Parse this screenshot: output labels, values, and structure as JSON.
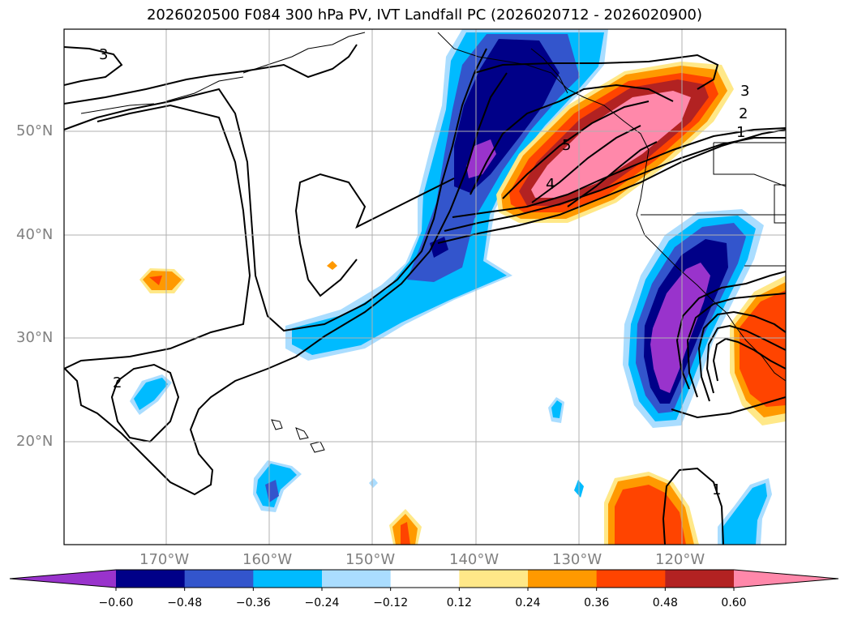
{
  "title": "2026020500 F084 300 hPa PV, IVT Landfall PC (2026020712 - 2026020900)",
  "lat_labels": [
    "50°N",
    "40°N",
    "30°N",
    "20°N"
  ],
  "lon_labels": [
    "170°W",
    "160°W",
    "150°W",
    "140°W",
    "130°W",
    "120°W"
  ],
  "contour_labels": [
    "3",
    "3",
    "2",
    "1",
    "5",
    "4",
    "2",
    "1"
  ],
  "colorbar": {
    "tick_labels": [
      "−0.60",
      "−0.48",
      "−0.36",
      "−0.24",
      "−0.12",
      "0.12",
      "0.24",
      "0.36",
      "0.48",
      "0.60"
    ],
    "colors": [
      "#9933cc",
      "#000088",
      "#3355cc",
      "#00bbff",
      "#aaddff",
      "#ffffff",
      "#ffe888",
      "#ff9900",
      "#ff4400",
      "#b22222",
      "#ff88aa",
      "#ff88aa"
    ]
  },
  "colors": {
    "purple": "#9933cc",
    "navy": "#000088",
    "blue": "#3355cc",
    "cyan": "#00bbff",
    "lightblue": "#aaddff",
    "yellow": "#ffe888",
    "orange": "#ff9900",
    "redorange": "#ff4400",
    "darkred": "#b22222",
    "pink": "#ff88aa"
  }
}
